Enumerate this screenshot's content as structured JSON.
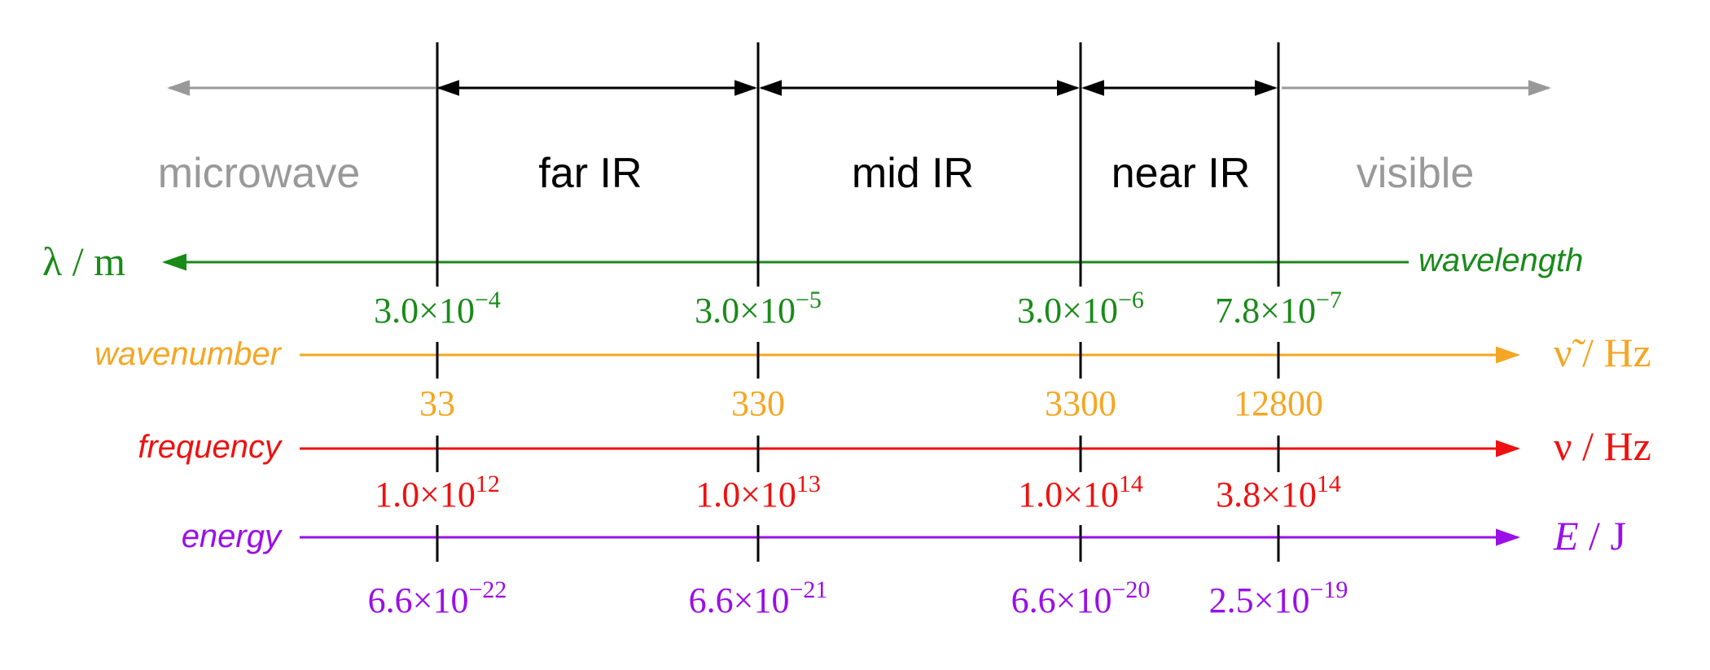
{
  "colors": {
    "gray": "#999999",
    "black": "#000000",
    "green": "#1a8a1a",
    "orange": "#f5a623",
    "red": "#ee1111",
    "purple": "#9a0fe8"
  },
  "bands": [
    {
      "label": "microwave",
      "color": "gray"
    },
    {
      "label": "far IR",
      "color": "black"
    },
    {
      "label": "mid IR",
      "color": "black"
    },
    {
      "label": "near IR",
      "color": "black"
    },
    {
      "label": "visible",
      "color": "gray"
    }
  ],
  "axes": [
    {
      "key": "wavelength",
      "word": "wavelength",
      "symbol": "λ",
      "unit": "/ m",
      "color": "green",
      "direction": "left",
      "values": [
        {
          "mantissa": "3.0",
          "times": "×",
          "base": "10",
          "exp": "−4"
        },
        {
          "mantissa": "3.0",
          "times": "×",
          "base": "10",
          "exp": "−5"
        },
        {
          "mantissa": "3.0",
          "times": "×",
          "base": "10",
          "exp": "−6"
        },
        {
          "mantissa": "7.8",
          "times": "×",
          "base": "10",
          "exp": "−7"
        }
      ]
    },
    {
      "key": "wavenumber",
      "word": "wavenumber",
      "symbol": "ν̃",
      "unit": "/ Hz",
      "color": "orange",
      "direction": "right",
      "values": [
        {
          "mantissa": "33"
        },
        {
          "mantissa": "330"
        },
        {
          "mantissa": "3300"
        },
        {
          "mantissa": "12800"
        }
      ]
    },
    {
      "key": "frequency",
      "word": "frequency",
      "symbol": "ν",
      "unit": "/ Hz",
      "color": "red",
      "direction": "right",
      "values": [
        {
          "mantissa": "1.0",
          "times": "×",
          "base": "10",
          "exp": "12"
        },
        {
          "mantissa": "1.0",
          "times": "×",
          "base": "10",
          "exp": "13"
        },
        {
          "mantissa": "1.0",
          "times": "×",
          "base": "10",
          "exp": "14"
        },
        {
          "mantissa": "3.8",
          "times": "×",
          "base": "10",
          "exp": "14"
        }
      ]
    },
    {
      "key": "energy",
      "word": "energy",
      "symbol": "E",
      "unit": "/ J",
      "color": "purple",
      "direction": "right",
      "values": [
        {
          "mantissa": "6.6",
          "times": "×",
          "base": "10",
          "exp": "−22"
        },
        {
          "mantissa": "6.6",
          "times": "×",
          "base": "10",
          "exp": "−21"
        },
        {
          "mantissa": "6.6",
          "times": "×",
          "base": "10",
          "exp": "−20"
        },
        {
          "mantissa": "2.5",
          "times": "×",
          "base": "10",
          "exp": "−19"
        }
      ]
    }
  ]
}
